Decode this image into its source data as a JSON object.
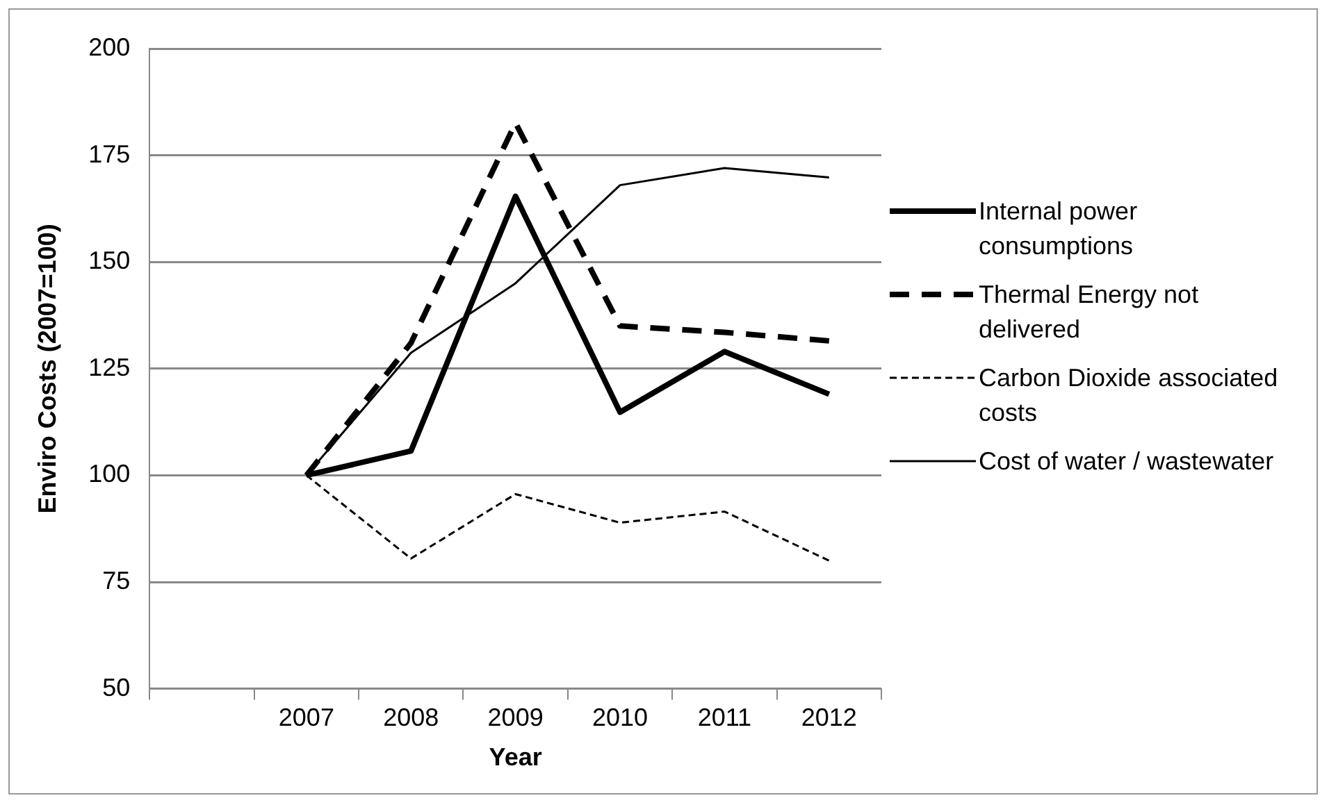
{
  "chart_data": {
    "type": "line",
    "xlabel": "Year",
    "ylabel": "Enviro Costs (2007=100)",
    "categories": [
      null,
      "2007",
      "2008",
      "2009",
      "2010",
      "2011",
      "2012"
    ],
    "series": [
      {
        "name": "Internal power consumptions",
        "color": "#000000",
        "line_style": "solid",
        "values": [
          null,
          100,
          105.7,
          165.4,
          114.8,
          129,
          119
        ]
      },
      {
        "name": "Thermal Energy not delivered",
        "color": "#000000",
        "line_style": "dashed",
        "values": [
          null,
          100,
          131,
          182.6,
          135,
          133.5,
          131.5
        ]
      },
      {
        "name": "Carbon Dioxide associated costs",
        "color": "#000000",
        "line_style": "dotted",
        "values": [
          null,
          100,
          80.5,
          95.6,
          88.9,
          91.5,
          80
        ]
      },
      {
        "name": "Cost of water / wastewater",
        "color": "#000000",
        "line_style": "solid",
        "values": [
          null,
          100,
          128.7,
          145,
          168,
          172,
          169.8
        ]
      }
    ],
    "ylim": [
      50,
      200
    ],
    "yticks": [
      50,
      75,
      100,
      125,
      150,
      175,
      200
    ],
    "grid": "y",
    "legend": "right",
    "marker": "none"
  }
}
